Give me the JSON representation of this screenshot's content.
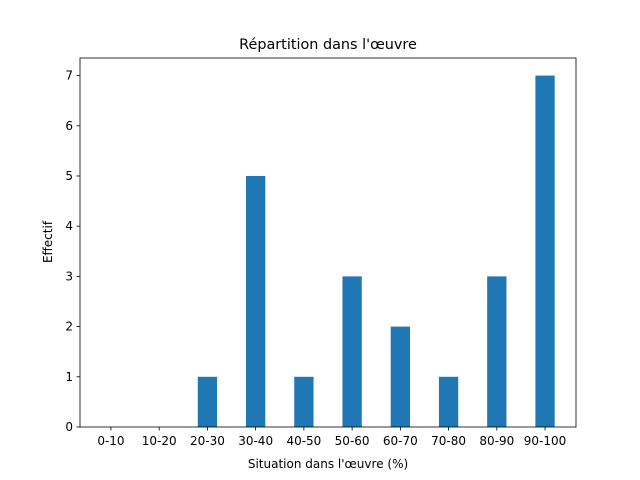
{
  "chart_data": {
    "type": "bar",
    "title": "Répartition dans l'œuvre",
    "xlabel": "Situation dans l'œuvre (%)",
    "ylabel": "Effectif",
    "categories": [
      "0-10",
      "10-20",
      "20-30",
      "30-40",
      "40-50",
      "50-60",
      "60-70",
      "70-80",
      "80-90",
      "90-100"
    ],
    "values": [
      0,
      0,
      1,
      5,
      1,
      3,
      2,
      1,
      3,
      7
    ],
    "color": "#1f77b4",
    "ylim": [
      0,
      7.35
    ],
    "yticks": [
      0,
      1,
      2,
      3,
      4,
      5,
      6,
      7
    ],
    "grid": false
  }
}
